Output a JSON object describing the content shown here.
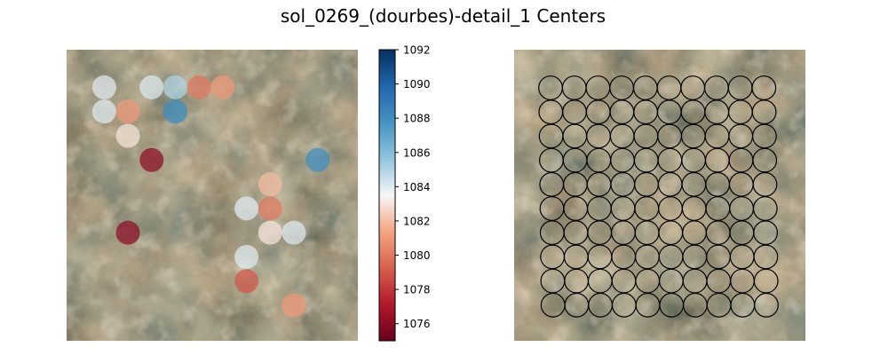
{
  "title": "sol_0269_(dourbes)-detail_1 Centers",
  "colors": {
    "bg_base": "#5a4e3e",
    "bg_light": "#8f7a5c",
    "bg_dark": "#3a3328",
    "grid_circle_stroke": "#000000"
  },
  "chart_data": [
    {
      "type": "scatter",
      "panel": "left",
      "background": "rock texture image (no axes)",
      "marker": "filled circle, semi-transparent",
      "colormap": "RdBu",
      "color_range": [
        1075,
        1092
      ],
      "points": [
        {
          "col": 1,
          "row": 1,
          "value": 1084
        },
        {
          "col": 3,
          "row": 1,
          "value": 1084
        },
        {
          "col": 4,
          "row": 1,
          "value": 1085
        },
        {
          "col": 5,
          "row": 1,
          "value": 1080
        },
        {
          "col": 6,
          "row": 1,
          "value": 1081
        },
        {
          "col": 1,
          "row": 2,
          "value": 1084
        },
        {
          "col": 2,
          "row": 2,
          "value": 1081
        },
        {
          "col": 4,
          "row": 2,
          "value": 1088
        },
        {
          "col": 2,
          "row": 3,
          "value": 1083
        },
        {
          "col": 3,
          "row": 4,
          "value": 1076
        },
        {
          "col": 10,
          "row": 4,
          "value": 1088
        },
        {
          "col": 8,
          "row": 5,
          "value": 1082
        },
        {
          "col": 7,
          "row": 6,
          "value": 1084
        },
        {
          "col": 8,
          "row": 6,
          "value": 1080
        },
        {
          "col": 2,
          "row": 7,
          "value": 1076
        },
        {
          "col": 8,
          "row": 7,
          "value": 1083
        },
        {
          "col": 9,
          "row": 7,
          "value": 1084
        },
        {
          "col": 7,
          "row": 8,
          "value": 1084
        },
        {
          "col": 7,
          "row": 9,
          "value": 1079
        },
        {
          "col": 9,
          "row": 10,
          "value": 1081
        }
      ],
      "colorbar": {
        "ticks": [
          "1076",
          "1078",
          "1080",
          "1082",
          "1084",
          "1086",
          "1088",
          "1090",
          "1092"
        ],
        "tick_values": [
          1076,
          1078,
          1080,
          1082,
          1084,
          1086,
          1088,
          1090,
          1092
        ]
      }
    },
    {
      "type": "scatter",
      "panel": "right",
      "background": "rock texture image (no axes)",
      "marker": "unfilled black circle",
      "grid": {
        "columns": 10,
        "rows": 10
      }
    }
  ]
}
